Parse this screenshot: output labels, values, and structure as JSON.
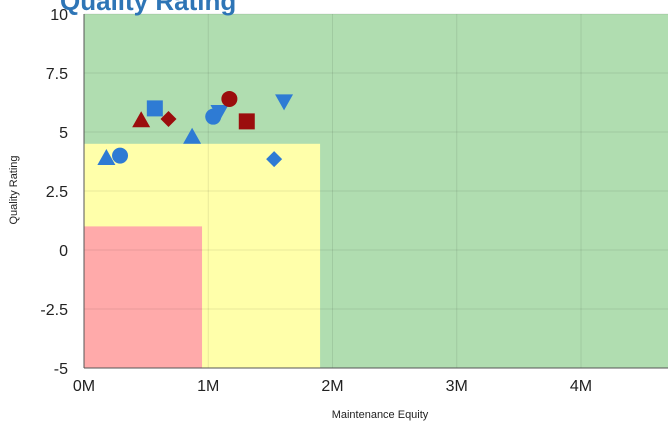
{
  "chart_data": {
    "type": "scatter",
    "title_fragment": "Quality Rating",
    "xlabel": "Maintenance Equity",
    "ylabel": "Quality Rating",
    "xlim": [
      0,
      4700000
    ],
    "ylim": [
      -5,
      10
    ],
    "x_ticks": [
      0,
      1000000,
      2000000,
      3000000,
      4000000
    ],
    "x_tick_labels": [
      "0M",
      "1M",
      "2M",
      "3M",
      "4M"
    ],
    "y_ticks": [
      10,
      7.5,
      5,
      2.5,
      0,
      -2.5,
      -5
    ],
    "y_tick_labels": [
      "10",
      "7.5",
      "5",
      "2.5",
      "0",
      "-2.5",
      "-5"
    ],
    "grid": true,
    "zones": [
      {
        "name": "green",
        "color": "#b0ddb0",
        "x": [
          0,
          4700000
        ],
        "y": [
          -5,
          10
        ]
      },
      {
        "name": "yellow",
        "color": "#ffffaa",
        "x": [
          0,
          1900000
        ],
        "y": [
          -5,
          4.5
        ]
      },
      {
        "name": "red",
        "color": "#ffaaaa",
        "x": [
          0,
          950000
        ],
        "y": [
          -5,
          1
        ]
      }
    ],
    "colors": {
      "blue": "#2e7bd4",
      "darkred": "#9b0d0d"
    },
    "points": [
      {
        "x": 180000,
        "y": 3.9,
        "shape": "triangle",
        "color": "blue"
      },
      {
        "x": 290000,
        "y": 4.0,
        "shape": "circle",
        "color": "blue"
      },
      {
        "x": 460000,
        "y": 5.5,
        "shape": "triangle",
        "color": "darkred"
      },
      {
        "x": 570000,
        "y": 6.0,
        "shape": "square",
        "color": "blue"
      },
      {
        "x": 680000,
        "y": 5.55,
        "shape": "diamond",
        "color": "darkred"
      },
      {
        "x": 870000,
        "y": 4.8,
        "shape": "triangle",
        "color": "blue"
      },
      {
        "x": 1040000,
        "y": 5.65,
        "shape": "circle",
        "color": "blue"
      },
      {
        "x": 1090000,
        "y": 5.85,
        "shape": "triangle-down",
        "color": "blue"
      },
      {
        "x": 1170000,
        "y": 6.4,
        "shape": "circle",
        "color": "darkred"
      },
      {
        "x": 1310000,
        "y": 5.45,
        "shape": "square",
        "color": "darkred"
      },
      {
        "x": 1530000,
        "y": 3.85,
        "shape": "diamond",
        "color": "blue"
      },
      {
        "x": 1610000,
        "y": 6.3,
        "shape": "triangle-down",
        "color": "blue"
      }
    ]
  }
}
